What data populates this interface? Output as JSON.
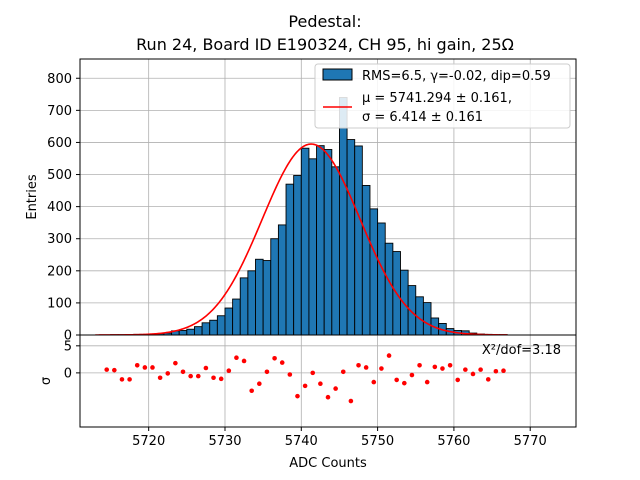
{
  "chart_data": {
    "type": "bar",
    "title_line1": "Pedestal:",
    "title_line2": "Run 24, Board ID E190324, CH 95, hi gain, 25Ω",
    "xlabel": "ADC Counts",
    "ylabel": "Entries",
    "residual_ylabel": "σ",
    "xlim": [
      5711,
      5776
    ],
    "ylim": [
      0,
      860
    ],
    "residual_ylim": [
      -10,
      7
    ],
    "x_ticks": [
      5720,
      5730,
      5740,
      5750,
      5760,
      5770
    ],
    "y_ticks": [
      0,
      100,
      200,
      300,
      400,
      500,
      600,
      700,
      800
    ],
    "residual_y_ticks": [
      0,
      5
    ],
    "bin_width": 1,
    "bin_edges_start": 5713,
    "histogram": {
      "label": "RMS=6.5, γ=-0.02, dip=0.59",
      "color": "#1f77b4",
      "values": [
        0,
        0,
        1,
        1,
        1,
        2,
        2,
        2,
        4,
        6,
        13,
        14,
        18,
        26,
        38,
        46,
        60,
        84,
        112,
        178,
        200,
        236,
        232,
        300,
        343,
        470,
        497,
        582,
        549,
        590,
        578,
        524,
        740,
        609,
        589,
        466,
        393,
        349,
        286,
        260,
        202,
        154,
        119,
        101,
        53,
        36,
        20,
        14,
        13,
        6,
        3,
        2,
        1,
        1
      ]
    },
    "fit": {
      "type": "gaussian",
      "color": "#ff0000",
      "amplitude": 595,
      "mu": 5741.294,
      "sigma": 6.414,
      "legend_line1": "μ = 5741.294 ± 0.161,",
      "legend_line2": "σ = 6.414 ± 0.161"
    },
    "residuals": {
      "label": "X²/dof=3.18",
      "color": "#ff0000",
      "x": [
        5714.5,
        5715.5,
        5716.5,
        5717.5,
        5718.5,
        5719.5,
        5720.5,
        5721.5,
        5722.5,
        5723.5,
        5724.5,
        5725.5,
        5726.5,
        5727.5,
        5728.5,
        5729.5,
        5730.5,
        5731.5,
        5732.5,
        5733.5,
        5734.5,
        5735.5,
        5736.5,
        5737.5,
        5738.5,
        5739.5,
        5740.5,
        5741.5,
        5742.5,
        5743.5,
        5744.5,
        5745.5,
        5746.5,
        5747.5,
        5748.5,
        5749.5,
        5750.5,
        5751.5,
        5752.5,
        5753.5,
        5754.5,
        5755.5,
        5756.5,
        5757.5,
        5758.5,
        5759.5,
        5760.5,
        5761.5,
        5762.5,
        5763.5,
        5764.5,
        5765.5,
        5766.5
      ],
      "y": [
        0.6,
        0.5,
        -1.2,
        -1.2,
        1.4,
        1.0,
        1.0,
        -0.9,
        -0.1,
        1.8,
        0.2,
        -0.6,
        -0.6,
        0.9,
        -0.9,
        -1.1,
        0.4,
        2.8,
        2.2,
        -3.3,
        -2.0,
        0.2,
        2.7,
        1.9,
        -0.3,
        -4.3,
        -2.4,
        0.0,
        -2.0,
        -4.5,
        -2.9,
        0.2,
        -5.2,
        1.4,
        1.0,
        -1.7,
        0.8,
        3.2,
        -1.3,
        -1.9,
        -0.4,
        1.4,
        -1.7,
        1.1,
        0.8,
        1.4,
        -1.3,
        0.6,
        -0.2,
        0.6,
        -1.2,
        0.3,
        0.4
      ]
    }
  }
}
